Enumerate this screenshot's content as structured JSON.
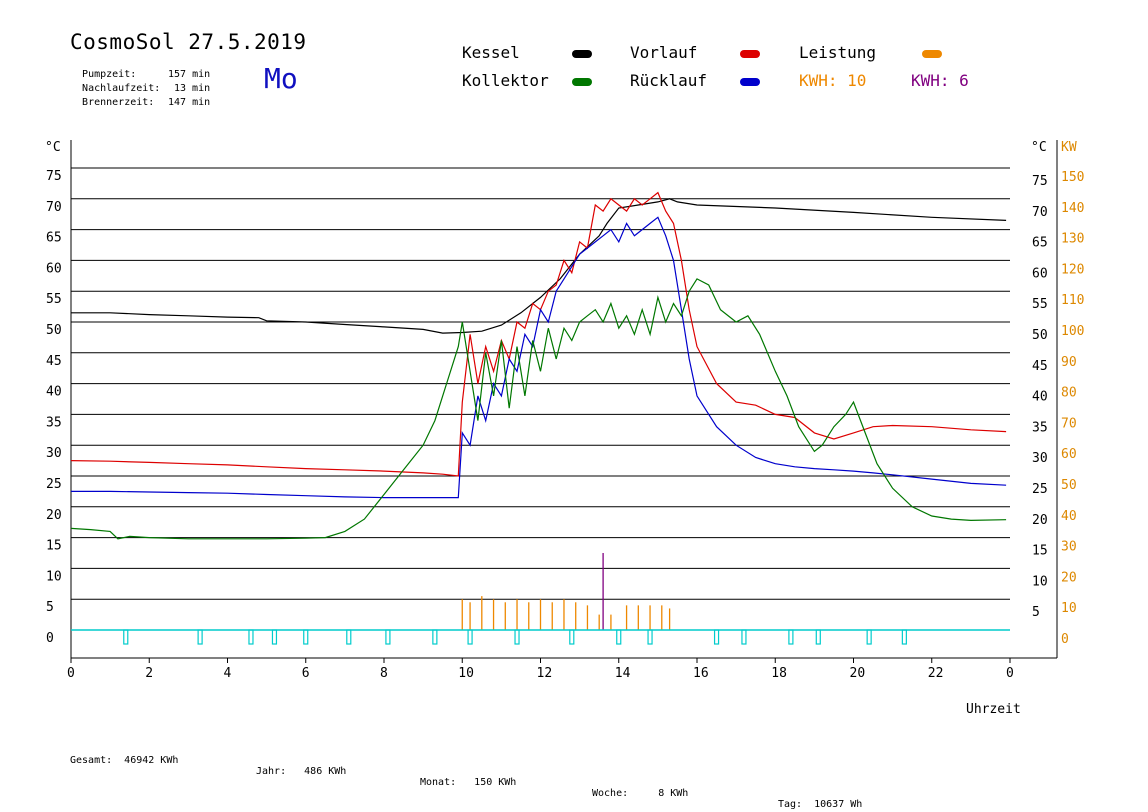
{
  "header": {
    "title": "CosmoSol 27.5.2019",
    "weekday": "Mo",
    "pump_label": "Pumpzeit:",
    "pump_value": "157 min",
    "afterrun_label": "Nachlaufzeit:",
    "afterrun_value": "13 min",
    "burner_label": "Brennerzeit:",
    "burner_value": "147 min"
  },
  "legend": {
    "kessel": "Kessel",
    "kollektor": "Kollektor",
    "vorlauf": "Vorlauf",
    "ruecklauf": "Rücklauf",
    "leistung": "Leistung",
    "kwh1": "KWH: 10",
    "kwh2": "KWH: 6"
  },
  "colors": {
    "kessel": "#000000",
    "vorlauf": "#dd0000",
    "kollektor": "#007700",
    "ruecklauf": "#0000cc",
    "leistung": "#ee8800",
    "kwh2": "#800080",
    "pump": "#00cccc",
    "grid": "#000000",
    "right_axis": "#dd8800"
  },
  "footer": {
    "gesamt": "Gesamt:  46942 KWh",
    "jahr": "Jahr:   486 KWh",
    "monat": "Monat:   150 KWh",
    "woche": "Woche:     8 KWh",
    "tag": "Tag:  10637 Wh"
  },
  "chart_data": {
    "type": "line",
    "xlabel": "Uhrzeit",
    "ylabel_left": "°C",
    "ylabel_right_1": "°C",
    "ylabel_right_2": "KW",
    "xlim": [
      0,
      24
    ],
    "ylim": [
      0,
      75
    ],
    "x_ticks": [
      "0",
      "2",
      "4",
      "6",
      "8",
      "10",
      "12",
      "14",
      "16",
      "18",
      "20",
      "22",
      "0"
    ],
    "y_ticks_left": [
      "75",
      "70",
      "65",
      "60",
      "55",
      "50",
      "45",
      "40",
      "35",
      "30",
      "25",
      "20",
      "15",
      "10",
      "5",
      "0"
    ],
    "y_ticks_right_c": [
      "75",
      "70",
      "65",
      "60",
      "55",
      "50",
      "45",
      "40",
      "35",
      "30",
      "25",
      "20",
      "15",
      "10",
      "5"
    ],
    "y_ticks_right_kw": [
      "150",
      "140",
      "130",
      "120",
      "110",
      "100",
      "90",
      "80",
      "70",
      "60",
      "50",
      "40",
      "30",
      "20",
      "10",
      "0"
    ],
    "series": [
      {
        "name": "Kessel",
        "key": "kessel",
        "x": [
          0,
          1,
          2,
          3,
          4,
          4.8,
          5,
          6,
          7,
          8,
          9,
          9.5,
          10,
          10.5,
          11,
          11.5,
          12,
          12.5,
          13,
          13.5,
          13.7,
          14,
          14.5,
          15,
          15.3,
          15.5,
          16,
          18,
          20,
          22,
          23.9
        ],
        "y": [
          51.5,
          51.5,
          51.2,
          51,
          50.8,
          50.7,
          50.2,
          50,
          49.6,
          49.2,
          48.8,
          48.2,
          48.3,
          48.5,
          49.5,
          51.5,
          54,
          57,
          61,
          64,
          66,
          68.5,
          69,
          69.5,
          70,
          69.5,
          69,
          68.5,
          67.8,
          67,
          66.5
        ]
      },
      {
        "name": "Vorlauf",
        "key": "vorlauf",
        "x": [
          0,
          1,
          2,
          3,
          4,
          5,
          6,
          7,
          8,
          9,
          9.5,
          9.9,
          10,
          10.2,
          10.4,
          10.6,
          10.8,
          11,
          11.2,
          11.4,
          11.6,
          11.8,
          12,
          12.2,
          12.4,
          12.6,
          12.8,
          13,
          13.2,
          13.4,
          13.6,
          13.8,
          14,
          14.2,
          14.4,
          14.6,
          14.8,
          15,
          15.2,
          15.4,
          15.6,
          15.8,
          16,
          16.5,
          17,
          17.5,
          18,
          18.5,
          19,
          19.5,
          20,
          20.5,
          21,
          22,
          23,
          23.9
        ],
        "y": [
          27.5,
          27.4,
          27.2,
          27,
          26.8,
          26.5,
          26.2,
          26,
          25.8,
          25.5,
          25.3,
          25,
          37,
          48,
          40,
          46,
          42,
          47,
          44,
          50,
          49,
          53,
          52,
          55,
          56,
          60,
          58,
          63,
          62,
          69,
          68,
          70,
          69,
          68,
          70,
          69,
          70,
          71,
          68,
          66,
          60,
          52,
          46,
          40,
          37,
          36.5,
          35,
          34.5,
          32,
          31,
          32,
          33,
          33.2,
          33,
          32.5,
          32.2
        ]
      },
      {
        "name": "Rücklauf",
        "key": "ruecklauf",
        "x": [
          0,
          1,
          2,
          3,
          4,
          5,
          6,
          7,
          8,
          9,
          9.5,
          9.9,
          10,
          10.2,
          10.4,
          10.6,
          10.8,
          11,
          11.2,
          11.4,
          11.6,
          11.8,
          12,
          12.2,
          12.4,
          12.6,
          12.8,
          13,
          13.2,
          13.4,
          13.6,
          13.8,
          14,
          14.2,
          14.4,
          14.6,
          14.8,
          15,
          15.2,
          15.4,
          15.6,
          15.8,
          16,
          16.5,
          17,
          17.5,
          18,
          18.5,
          19,
          19.5,
          20,
          20.5,
          21,
          22,
          23,
          23.9
        ],
        "y": [
          22.5,
          22.5,
          22.4,
          22.3,
          22.2,
          22,
          21.8,
          21.6,
          21.5,
          21.5,
          21.5,
          21.5,
          32,
          30,
          38,
          34,
          40,
          38,
          44,
          42,
          48,
          46,
          52,
          50,
          55,
          57,
          59,
          61,
          62,
          63,
          64,
          65,
          63,
          66,
          64,
          65,
          66,
          67,
          64,
          60,
          52,
          44,
          38,
          33,
          30,
          28,
          27,
          26.5,
          26.2,
          26,
          25.8,
          25.5,
          25.2,
          24.5,
          23.8,
          23.5
        ]
      },
      {
        "name": "Kollektor",
        "key": "kollektor",
        "x": [
          0,
          0.5,
          1,
          1.2,
          1.5,
          2,
          3,
          4,
          5,
          6,
          6.5,
          7,
          7.5,
          8,
          8.5,
          9,
          9.3,
          9.6,
          9.9,
          10,
          10.2,
          10.4,
          10.6,
          10.8,
          11,
          11.2,
          11.4,
          11.6,
          11.8,
          12,
          12.2,
          12.4,
          12.6,
          12.8,
          13,
          13.2,
          13.4,
          13.6,
          13.8,
          14,
          14.2,
          14.4,
          14.6,
          14.8,
          15,
          15.2,
          15.4,
          15.6,
          15.8,
          16,
          16.3,
          16.6,
          17,
          17.3,
          17.6,
          18,
          18.3,
          18.6,
          19,
          19.2,
          19.5,
          19.8,
          20,
          20.3,
          20.6,
          21,
          21.5,
          22,
          22.5,
          23,
          23.9
        ],
        "y": [
          16.5,
          16.3,
          16,
          14.8,
          15.2,
          15,
          14.8,
          14.8,
          14.8,
          14.9,
          15,
          16,
          18,
          22,
          26,
          30,
          34,
          40,
          46,
          50,
          42,
          34,
          45,
          38,
          47,
          36,
          46,
          38,
          47,
          42,
          49,
          44,
          49,
          47,
          50,
          51,
          52,
          50,
          53,
          49,
          51,
          48,
          52,
          48,
          54,
          50,
          53,
          51,
          55,
          57,
          56,
          52,
          50,
          51,
          48,
          42,
          38,
          33,
          29,
          30,
          33,
          35,
          37,
          32,
          27,
          23,
          20,
          18.5,
          18,
          17.8,
          17.9
        ]
      }
    ],
    "bar_series": [
      {
        "name": "Leistung",
        "key": "leistung",
        "x": [
          10,
          10.2,
          10.5,
          10.8,
          11.1,
          11.4,
          11.7,
          12,
          12.3,
          12.6,
          12.9,
          13.2,
          13.5,
          13.8,
          14.2,
          14.5,
          14.8,
          15.1,
          15.3
        ],
        "y": [
          10,
          9,
          11,
          10,
          9,
          10,
          9,
          10,
          9,
          10,
          9,
          8,
          5,
          5,
          8,
          8,
          8,
          8,
          7
        ]
      },
      {
        "name": "KWH: 6",
        "key": "kwh2",
        "x": [
          13.6
        ],
        "y": [
          25
        ]
      }
    ],
    "pump_markers_x": [
      1.4,
      3.3,
      4.6,
      5.2,
      6,
      7.1,
      8.1,
      9.3,
      10.2,
      11.4,
      12.8,
      14,
      14.8,
      16.5,
      17.2,
      18.4,
      19.1,
      20.4,
      21.3
    ]
  }
}
